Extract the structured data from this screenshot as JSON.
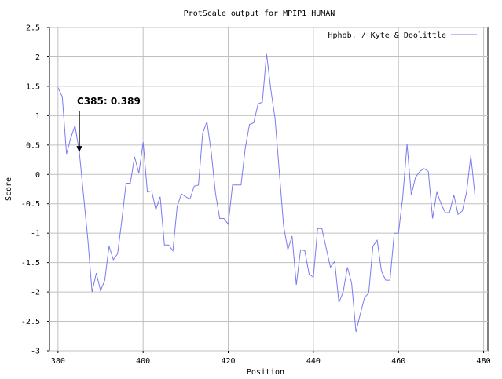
{
  "chart_data": {
    "type": "line",
    "title": "ProtScale output for MPIP1 HUMAN",
    "xlabel": "Position",
    "ylabel": "Score",
    "xlim": [
      378,
      481
    ],
    "ylim": [
      -3,
      2.5
    ],
    "xticks": [
      380,
      400,
      420,
      440,
      460,
      480
    ],
    "yticks": [
      2.5,
      2,
      1.5,
      1,
      0.5,
      0,
      -0.5,
      -1,
      -1.5,
      -2,
      -2.5,
      -3
    ],
    "ytick_labels": [
      "2.5",
      "2",
      "1.5",
      "1",
      "0.5",
      "0",
      "-0.5",
      "-1",
      "-1.5",
      "-2",
      "-2.5",
      "-3"
    ],
    "grid": true,
    "legend_position": "top-right",
    "series": [
      {
        "name": "Hphob. / Kyte & Doolittle",
        "color": "#7b7bf2",
        "x": [
          380,
          381,
          382,
          383,
          384,
          385,
          386,
          387,
          388,
          389,
          390,
          391,
          392,
          393,
          394,
          395,
          396,
          397,
          398,
          399,
          400,
          401,
          402,
          403,
          404,
          405,
          406,
          407,
          408,
          409,
          410,
          411,
          412,
          413,
          414,
          415,
          416,
          417,
          418,
          419,
          420,
          421,
          422,
          423,
          424,
          425,
          426,
          427,
          428,
          429,
          430,
          431,
          432,
          433,
          434,
          435,
          436,
          437,
          438,
          439,
          440,
          441,
          442,
          443,
          444,
          445,
          446,
          447,
          448,
          449,
          450,
          451,
          452,
          453,
          454,
          455,
          456,
          457,
          458,
          459,
          460,
          461,
          462,
          463,
          464,
          465,
          466,
          467,
          468,
          469,
          470,
          471,
          472,
          473,
          474,
          475,
          476,
          477,
          478
        ],
        "y": [
          1.48,
          1.32,
          0.35,
          0.62,
          0.83,
          0.389,
          -0.35,
          -1.1,
          -2.0,
          -1.68,
          -1.98,
          -1.8,
          -1.22,
          -1.45,
          -1.35,
          -0.78,
          -0.15,
          -0.15,
          0.3,
          0.02,
          0.55,
          -0.3,
          -0.28,
          -0.6,
          -0.38,
          -1.2,
          -1.2,
          -1.3,
          -0.55,
          -0.33,
          -0.38,
          -0.42,
          -0.2,
          -0.18,
          0.7,
          0.9,
          0.38,
          -0.32,
          -0.75,
          -0.75,
          -0.85,
          -0.18,
          -0.18,
          -0.18,
          0.45,
          0.85,
          0.88,
          1.2,
          1.23,
          2.05,
          1.45,
          0.95,
          0.05,
          -0.88,
          -1.28,
          -1.05,
          -1.88,
          -1.28,
          -1.3,
          -1.7,
          -1.75,
          -0.92,
          -0.92,
          -1.25,
          -1.58,
          -1.48,
          -2.18,
          -2.0,
          -1.58,
          -1.85,
          -2.68,
          -2.38,
          -2.1,
          -2.02,
          -1.22,
          -1.12,
          -1.65,
          -1.8,
          -1.8,
          -1.0,
          -1.0,
          -0.38,
          0.52,
          -0.35,
          -0.05,
          0.05,
          0.1,
          0.05,
          -0.75,
          -0.3,
          -0.5,
          -0.65,
          -0.65,
          -0.35,
          -0.68,
          -0.62,
          -0.3,
          0.32,
          -0.38
        ]
      }
    ],
    "annotations": [
      {
        "text": "C385: 0.389",
        "x": 385,
        "y": 0.389
      }
    ]
  }
}
